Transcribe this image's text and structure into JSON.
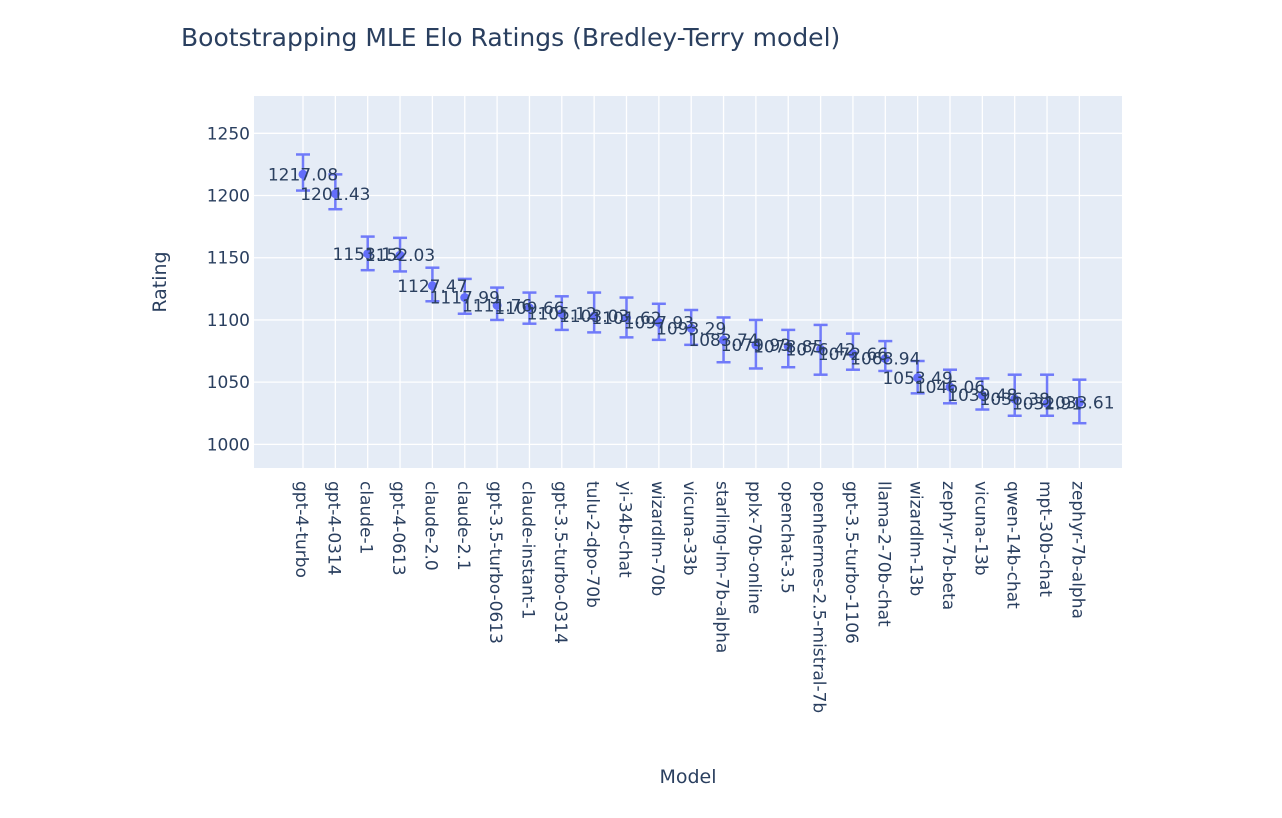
{
  "chart_data": {
    "type": "scatter",
    "title": "Bootstrapping MLE Elo Ratings (Bredley-Terry model)",
    "xlabel": "Model",
    "ylabel": "Rating",
    "ylim": [
      981,
      1280
    ],
    "yticks": [
      1000,
      1050,
      1100,
      1150,
      1200,
      1250
    ],
    "grid": true,
    "legend": "none",
    "marker_color": "#636efa",
    "categories": [
      "gpt-4-turbo",
      "gpt-4-0314",
      "claude-1",
      "gpt-4-0613",
      "claude-2.0",
      "claude-2.1",
      "gpt-3.5-turbo-0613",
      "claude-instant-1",
      "gpt-3.5-turbo-0314",
      "tulu-2-dpo-70b",
      "yi-34b-chat",
      "wizardlm-70b",
      "vicuna-33b",
      "starling-lm-7b-alpha",
      "pplx-70b-online",
      "openchat-3.5",
      "openhermes-2.5-mistral-7b",
      "gpt-3.5-turbo-1106",
      "llama-2-70b-chat",
      "wizardlm-13b",
      "zephyr-7b-beta",
      "vicuna-13b",
      "qwen-14b-chat",
      "mpt-30b-chat",
      "zephyr-7b-alpha"
    ],
    "values": [
      1217.08,
      1201.43,
      1153.12,
      1152.03,
      1127.47,
      1117.99,
      1111.76,
      1109.66,
      1105.12,
      1103.03,
      1101.62,
      1097.93,
      1093.29,
      1083.74,
      1079.93,
      1078.85,
      1076.42,
      1072.66,
      1068.94,
      1053.49,
      1046.06,
      1039.48,
      1036.38,
      1032.91,
      1033.61
    ],
    "labels": [
      "1217.08",
      "1201.43",
      "1153.12",
      "1152.03",
      "1127.47",
      "1117.99",
      "1111.76",
      "1109.66",
      "1105.12",
      "1103.03",
      "1101.62",
      "1097.93",
      "1093.29",
      "1083.74",
      "1079.93",
      "1078.85",
      "1076.42",
      "1072.66",
      "1068.94",
      "1053.49",
      "1046.06",
      "1039.48",
      "1036.38",
      "1032.91",
      "1033.61"
    ],
    "error_upper": [
      1233,
      1217,
      1167,
      1166,
      1142,
      1133,
      1126,
      1122,
      1119,
      1122,
      1118,
      1113,
      1108,
      1102,
      1100,
      1092,
      1096,
      1089,
      1083,
      1067,
      1060,
      1053,
      1056,
      1056,
      1052
    ],
    "error_lower": [
      1204,
      1189,
      1140,
      1139,
      1115,
      1105,
      1100,
      1097,
      1092,
      1090,
      1086,
      1084,
      1080,
      1066,
      1061,
      1062,
      1056,
      1060,
      1059,
      1041,
      1033,
      1028,
      1023,
      1023,
      1017
    ]
  }
}
